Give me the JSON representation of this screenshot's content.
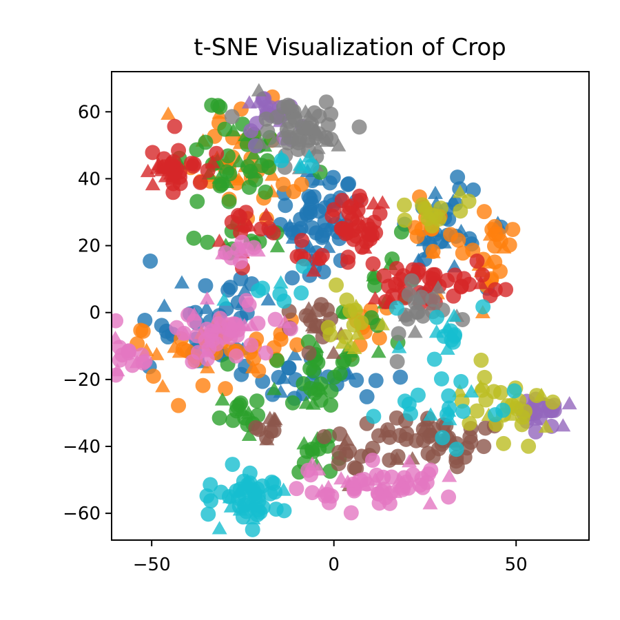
{
  "chart_data": {
    "type": "scatter",
    "title": "t-SNE Visualization of Crop",
    "xlabel": "",
    "ylabel": "",
    "xlim": [
      -61,
      70
    ],
    "ylim": [
      -68,
      72
    ],
    "xticks": [
      -50,
      0,
      50
    ],
    "yticks": [
      -60,
      -40,
      -20,
      0,
      20,
      40,
      60
    ],
    "xtick_labels": [
      "−50",
      "0",
      "50"
    ],
    "ytick_labels": [
      "−60",
      "−40",
      "−20",
      "0",
      "20",
      "40",
      "60"
    ],
    "grid": false,
    "legend": "none",
    "marker_alpha": 0.8,
    "series": [
      {
        "name": "blue",
        "color": "#1f77b4",
        "clusters": [
          {
            "cx": -5,
            "cy": 28,
            "sx": 6,
            "sy": 7,
            "n": 55
          },
          {
            "cx": 30,
            "cy": 25,
            "sx": 6,
            "sy": 8,
            "n": 35
          },
          {
            "cx": -35,
            "cy": -5,
            "sx": 10,
            "sy": 8,
            "n": 35
          },
          {
            "cx": -15,
            "cy": -20,
            "sx": 6,
            "sy": 4,
            "n": 12
          },
          {
            "cx": 5,
            "cy": -20,
            "sx": 5,
            "sy": 3,
            "n": 10
          },
          {
            "cx": -27,
            "cy": 5,
            "sx": 4,
            "sy": 3,
            "n": 8
          }
        ]
      },
      {
        "name": "orange",
        "color": "#ff7f0e",
        "clusters": [
          {
            "cx": -25,
            "cy": 45,
            "sx": 8,
            "sy": 7,
            "n": 45
          },
          {
            "cx": 42,
            "cy": 18,
            "sx": 4,
            "sy": 8,
            "n": 25
          },
          {
            "cx": -38,
            "cy": -12,
            "sx": 12,
            "sy": 6,
            "n": 45
          },
          {
            "cx": 25,
            "cy": 25,
            "sx": 4,
            "sy": 5,
            "n": 12
          },
          {
            "cx": 8,
            "cy": -5,
            "sx": 4,
            "sy": 5,
            "n": 12
          }
        ]
      },
      {
        "name": "green",
        "color": "#2ca02c",
        "clusters": [
          {
            "cx": -30,
            "cy": 45,
            "sx": 8,
            "sy": 8,
            "n": 45
          },
          {
            "cx": -25,
            "cy": 22,
            "sx": 4,
            "sy": 3,
            "n": 10
          },
          {
            "cx": -25,
            "cy": -30,
            "sx": 3,
            "sy": 3,
            "n": 15
          },
          {
            "cx": -5,
            "cy": -25,
            "sx": 4,
            "sy": 2,
            "n": 12
          },
          {
            "cx": -5,
            "cy": -42,
            "sx": 4,
            "sy": 3,
            "n": 15
          },
          {
            "cx": 15,
            "cy": 5,
            "sx": 6,
            "sy": 8,
            "n": 15
          },
          {
            "cx": -5,
            "cy": -12,
            "sx": 6,
            "sy": 4,
            "n": 18
          }
        ]
      },
      {
        "name": "red",
        "color": "#d62728",
        "clusters": [
          {
            "cx": -45,
            "cy": 43,
            "sx": 5,
            "sy": 4,
            "n": 35
          },
          {
            "cx": 5,
            "cy": 25,
            "sx": 5,
            "sy": 5,
            "n": 40
          },
          {
            "cx": 25,
            "cy": 8,
            "sx": 8,
            "sy": 4,
            "n": 40
          },
          {
            "cx": -25,
            "cy": 25,
            "sx": 4,
            "sy": 4,
            "n": 15
          },
          {
            "cx": -7,
            "cy": 18,
            "sx": 3,
            "sy": 3,
            "n": 8
          },
          {
            "cx": 40,
            "cy": 10,
            "sx": 2,
            "sy": 2,
            "n": 5
          }
        ]
      },
      {
        "name": "purple",
        "color": "#9467bd",
        "clusters": [
          {
            "cx": -17,
            "cy": 60,
            "sx": 4,
            "sy": 3,
            "n": 22
          },
          {
            "cx": 57,
            "cy": -30,
            "sx": 5,
            "sy": 2,
            "n": 25
          }
        ]
      },
      {
        "name": "brown",
        "color": "#8c564b",
        "clusters": [
          {
            "cx": -5,
            "cy": -3,
            "sx": 4,
            "sy": 5,
            "n": 20
          },
          {
            "cx": 27,
            "cy": -38,
            "sx": 8,
            "sy": 4,
            "n": 45
          },
          {
            "cx": -18,
            "cy": -35,
            "sx": 2,
            "sy": 3,
            "n": 10
          },
          {
            "cx": 5,
            "cy": -42,
            "sx": 5,
            "sy": 3,
            "n": 15
          }
        ]
      },
      {
        "name": "pink",
        "color": "#e377c2",
        "clusters": [
          {
            "cx": -30,
            "cy": -5,
            "sx": 8,
            "sy": 4,
            "n": 45
          },
          {
            "cx": -56,
            "cy": -13,
            "sx": 2.5,
            "sy": 3,
            "n": 15
          },
          {
            "cx": 10,
            "cy": -52,
            "sx": 10,
            "sy": 3,
            "n": 60
          },
          {
            "cx": -25,
            "cy": 18,
            "sx": 4,
            "sy": 2,
            "n": 10
          }
        ]
      },
      {
        "name": "gray",
        "color": "#7f7f7f",
        "clusters": [
          {
            "cx": -8,
            "cy": 54,
            "sx": 6,
            "sy": 5,
            "n": 55
          },
          {
            "cx": 25,
            "cy": 0,
            "sx": 6,
            "sy": 5,
            "n": 20
          }
        ]
      },
      {
        "name": "olive",
        "color": "#bcbd22",
        "clusters": [
          {
            "cx": 45,
            "cy": -28,
            "sx": 8,
            "sy": 5,
            "n": 30
          },
          {
            "cx": 28,
            "cy": 30,
            "sx": 6,
            "sy": 3,
            "n": 15
          },
          {
            "cx": 5,
            "cy": -3,
            "sx": 4,
            "sy": 5,
            "n": 15
          }
        ]
      },
      {
        "name": "cyan",
        "color": "#17becf",
        "clusters": [
          {
            "cx": -22,
            "cy": -55,
            "sx": 5,
            "sy": 4,
            "n": 50
          },
          {
            "cx": 32,
            "cy": -28,
            "sx": 8,
            "sy": 5,
            "n": 20
          },
          {
            "cx": 30,
            "cy": -5,
            "sx": 6,
            "sy": 4,
            "n": 15
          },
          {
            "cx": -8,
            "cy": 45,
            "sx": 3,
            "sy": 2,
            "n": 6
          },
          {
            "cx": -18,
            "cy": 8,
            "sx": 5,
            "sy": 3,
            "n": 8
          }
        ]
      }
    ]
  }
}
